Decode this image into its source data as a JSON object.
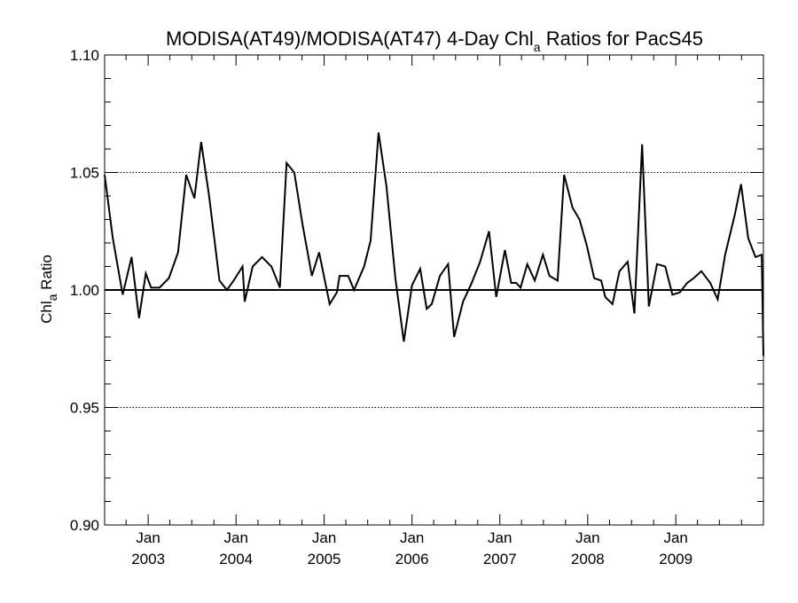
{
  "chart_data": {
    "type": "line",
    "title": {
      "prefix": "MODISA(AT49)/MODISA(AT47) 4-Day Chl",
      "subscript": "a",
      "suffix": " Ratios for PacS45"
    },
    "ylabel": {
      "prefix": "Chl",
      "subscript": "a",
      "suffix": " Ratio"
    },
    "xlabel": "",
    "xlim": [
      "2002-07-04",
      "2009-12-31"
    ],
    "ylim": [
      0.9,
      1.1
    ],
    "y_major_ticks": [
      0.9,
      0.95,
      1.0,
      1.05,
      1.1
    ],
    "y_tick_labels": [
      "0.90",
      "0.95",
      "1.00",
      "1.05",
      "1.10"
    ],
    "y_minor_step": 0.01,
    "x_ticks": [
      {
        "date": "2003-01-01",
        "label_top": "Jan",
        "label_bottom": "2003"
      },
      {
        "date": "2004-01-01",
        "label_top": "Jan",
        "label_bottom": "2004"
      },
      {
        "date": "2005-01-01",
        "label_top": "Jan",
        "label_bottom": "2005"
      },
      {
        "date": "2006-01-01",
        "label_top": "Jan",
        "label_bottom": "2006"
      },
      {
        "date": "2007-01-01",
        "label_top": "Jan",
        "label_bottom": "2007"
      },
      {
        "date": "2008-01-01",
        "label_top": "Jan",
        "label_bottom": "2008"
      },
      {
        "date": "2009-01-01",
        "label_top": "Jan",
        "label_bottom": "2009"
      }
    ],
    "reference_line": 1.0,
    "dotted_gridlines": [
      0.95,
      1.05
    ],
    "grid": false,
    "series": [
      {
        "color": "#000000",
        "points": [
          [
            "2002-07-04",
            1.049
          ],
          [
            "2002-08-07",
            1.022
          ],
          [
            "2002-09-17",
            0.998
          ],
          [
            "2002-10-24",
            1.014
          ],
          [
            "2002-11-24",
            0.988
          ],
          [
            "2002-12-22",
            1.007
          ],
          [
            "2003-01-13",
            1.001
          ],
          [
            "2003-02-17",
            1.001
          ],
          [
            "2003-03-28",
            1.005
          ],
          [
            "2003-05-05",
            1.016
          ],
          [
            "2003-06-08",
            1.049
          ],
          [
            "2003-07-12",
            1.039
          ],
          [
            "2003-08-09",
            1.063
          ],
          [
            "2003-09-11",
            1.04
          ],
          [
            "2003-10-24",
            1.004
          ],
          [
            "2003-11-24",
            1.0
          ],
          [
            "2003-12-22",
            1.004
          ],
          [
            "2004-01-28",
            1.01
          ],
          [
            "2004-02-06",
            0.995
          ],
          [
            "2004-03-10",
            1.01
          ],
          [
            "2004-04-18",
            1.014
          ],
          [
            "2004-05-27",
            1.01
          ],
          [
            "2004-07-01",
            1.001
          ],
          [
            "2004-07-29",
            1.054
          ],
          [
            "2004-08-30",
            1.05
          ],
          [
            "2004-10-03",
            1.028
          ],
          [
            "2004-11-11",
            1.006
          ],
          [
            "2004-12-11",
            1.016
          ],
          [
            "2005-01-24",
            0.994
          ],
          [
            "2005-02-23",
            0.999
          ],
          [
            "2005-03-06",
            1.006
          ],
          [
            "2005-04-11",
            1.006
          ],
          [
            "2005-05-05",
            1.0
          ],
          [
            "2005-06-16",
            1.01
          ],
          [
            "2005-07-13",
            1.021
          ],
          [
            "2005-08-15",
            1.067
          ],
          [
            "2005-09-17",
            1.044
          ],
          [
            "2005-10-24",
            1.005
          ],
          [
            "2005-11-28",
            0.978
          ],
          [
            "2006-01-01",
            1.002
          ],
          [
            "2006-02-04",
            1.009
          ],
          [
            "2006-03-03",
            0.992
          ],
          [
            "2006-03-24",
            0.994
          ],
          [
            "2006-04-27",
            1.006
          ],
          [
            "2006-05-31",
            1.011
          ],
          [
            "2006-06-25",
            0.98
          ],
          [
            "2006-08-01",
            0.995
          ],
          [
            "2006-09-06",
            1.003
          ],
          [
            "2006-10-11",
            1.012
          ],
          [
            "2006-11-17",
            1.025
          ],
          [
            "2006-12-17",
            0.997
          ],
          [
            "2007-01-22",
            1.017
          ],
          [
            "2007-02-17",
            1.003
          ],
          [
            "2007-03-10",
            1.003
          ],
          [
            "2007-03-28",
            1.001
          ],
          [
            "2007-04-25",
            1.011
          ],
          [
            "2007-05-26",
            1.004
          ],
          [
            "2007-06-29",
            1.015
          ],
          [
            "2007-07-26",
            1.006
          ],
          [
            "2007-08-29",
            1.004
          ],
          [
            "2007-09-25",
            1.049
          ],
          [
            "2007-10-30",
            1.035
          ],
          [
            "2007-11-28",
            1.03
          ],
          [
            "2007-12-28",
            1.019
          ],
          [
            "2008-01-28",
            1.005
          ],
          [
            "2008-02-26",
            1.004
          ],
          [
            "2008-03-14",
            0.997
          ],
          [
            "2008-04-13",
            0.994
          ],
          [
            "2008-05-12",
            1.008
          ],
          [
            "2008-06-15",
            1.012
          ],
          [
            "2008-07-13",
            0.99
          ],
          [
            "2008-08-14",
            1.062
          ],
          [
            "2008-09-11",
            0.993
          ],
          [
            "2008-10-15",
            1.011
          ],
          [
            "2008-11-18",
            1.01
          ],
          [
            "2008-12-18",
            0.998
          ],
          [
            "2009-01-18",
            0.999
          ],
          [
            "2009-02-17",
            1.003
          ],
          [
            "2009-03-16",
            1.005
          ],
          [
            "2009-04-17",
            1.008
          ],
          [
            "2009-05-24",
            1.003
          ],
          [
            "2009-06-24",
            0.996
          ],
          [
            "2009-07-25",
            1.015
          ],
          [
            "2009-09-03",
            1.032
          ],
          [
            "2009-09-29",
            1.045
          ],
          [
            "2009-10-29",
            1.022
          ],
          [
            "2009-11-28",
            1.014
          ],
          [
            "2009-12-24",
            1.015
          ],
          [
            "2009-12-31",
            0.972
          ]
        ]
      }
    ]
  }
}
